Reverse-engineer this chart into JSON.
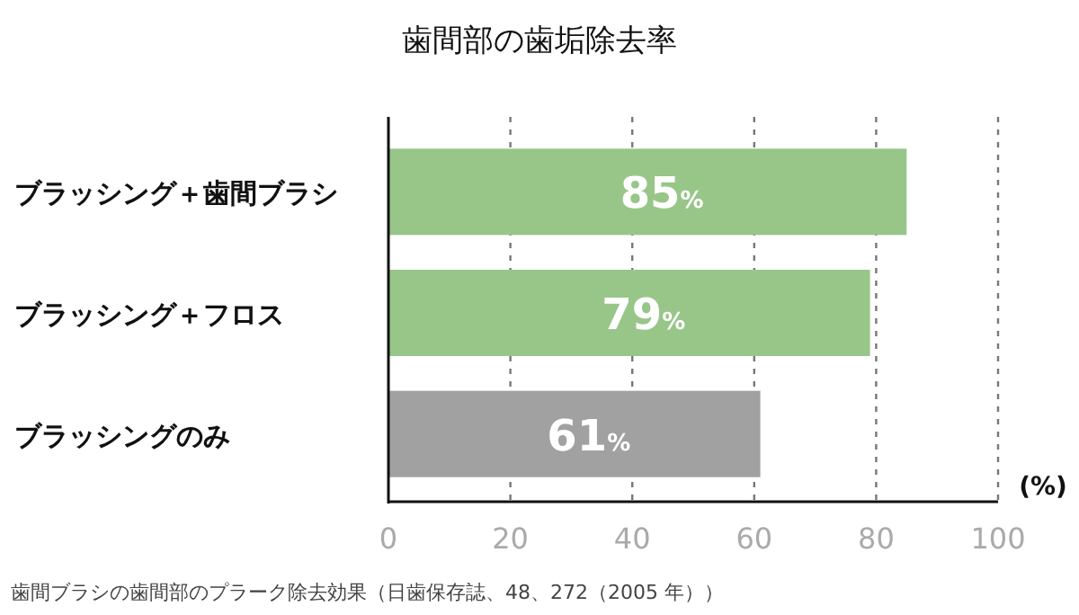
{
  "chart_data": {
    "type": "bar",
    "orientation": "horizontal",
    "title": "歯間部の歯垢除去率",
    "categories": [
      "ブラッシング＋歯間ブラシ",
      "ブラッシング＋フロス",
      "ブラッシングのみ"
    ],
    "values": [
      85,
      79,
      61
    ],
    "colors": [
      "#98c689",
      "#98c689",
      "#a0a1a0"
    ],
    "value_labels": [
      "85%",
      "79%",
      "61%"
    ],
    "xlabel": "(%)",
    "xlim": [
      0,
      100
    ],
    "xticks": [
      0,
      20,
      40,
      60,
      80,
      100
    ],
    "grid": "x",
    "annotations": [
      "歯間ブラシの歯間部のプラーク除去効果（日歯保存誌、48、272（2005 年））"
    ]
  }
}
